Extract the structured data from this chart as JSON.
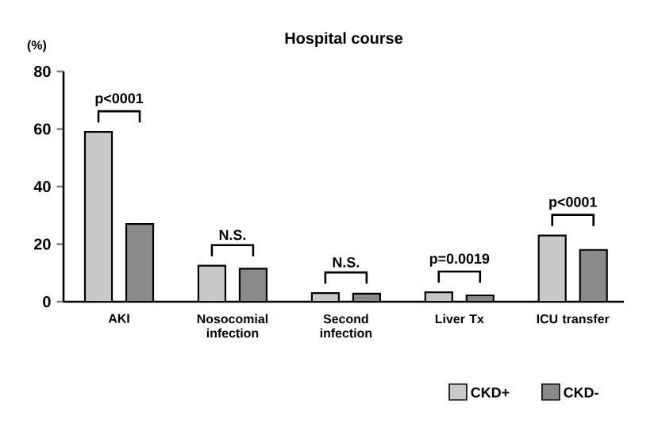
{
  "chart_data": {
    "type": "bar",
    "title": "Hospital course",
    "ylabel": "(%)",
    "categories": [
      "AKI",
      "Nosocomial infection",
      "Second infection",
      "Liver Tx",
      "ICU transfer"
    ],
    "series": [
      {
        "name": "CKD+",
        "color": "#c8c8c8",
        "values": [
          59,
          12.5,
          3,
          3.3,
          23
        ]
      },
      {
        "name": "CKD-",
        "color": "#8a8a8a",
        "values": [
          27,
          11.5,
          2.8,
          2.2,
          18
        ]
      }
    ],
    "ylim": [
      0,
      80
    ],
    "yticks": [
      0,
      20,
      40,
      60,
      80
    ],
    "grid": false,
    "legend": "bottom right",
    "annotations": [
      "p<0001",
      "N.S.",
      "N.S.",
      "p=0.0019",
      "p<0001"
    ]
  }
}
